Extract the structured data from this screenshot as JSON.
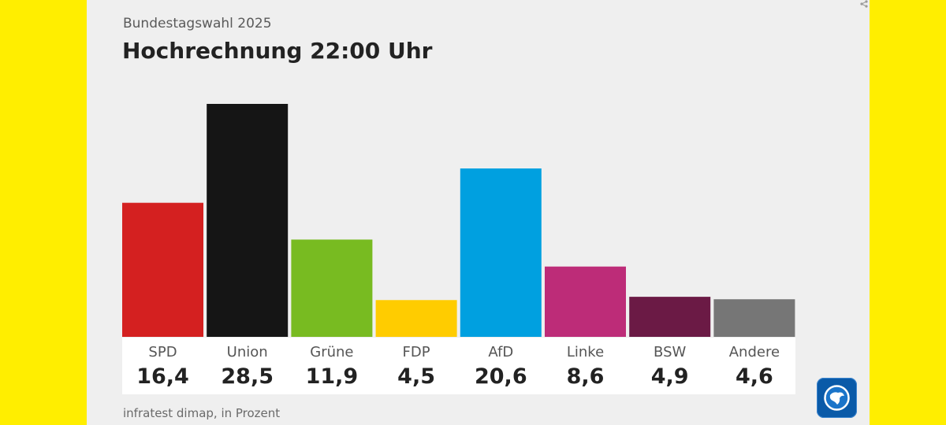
{
  "header": {
    "subtitle": "Bundestagswahl 2025",
    "title": "Hochrechnung 22:00 Uhr"
  },
  "footer": {
    "source": "infratest dimap, in Prozent"
  },
  "icons": {
    "share": "share-icon",
    "logo": "ard-tagesschau-logo-icon"
  },
  "chart_data": {
    "type": "bar",
    "title": "Hochrechnung 22:00 Uhr",
    "subtitle": "Bundestagswahl 2025",
    "categories": [
      "SPD",
      "Union",
      "Grüne",
      "FDP",
      "AfD",
      "Linke",
      "BSW",
      "Andere"
    ],
    "values": [
      16.4,
      28.5,
      11.9,
      4.5,
      20.6,
      8.6,
      4.9,
      4.6
    ],
    "value_labels": [
      "16,4",
      "28,5",
      "11,9",
      "4,5",
      "20,6",
      "8,6",
      "4,9",
      "4,6"
    ],
    "colors": [
      "#d42020",
      "#151515",
      "#78bb21",
      "#ffcc00",
      "#00a0e0",
      "#bd2c78",
      "#6b1a45",
      "#767676"
    ],
    "ylim": [
      0,
      28.5
    ],
    "grid": false,
    "legend": "none"
  }
}
